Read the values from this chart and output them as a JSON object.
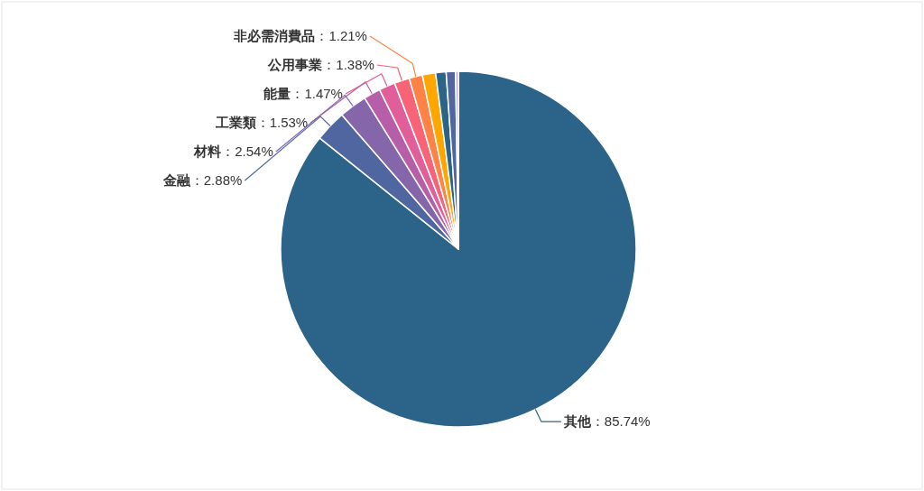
{
  "chart_data": {
    "type": "pie",
    "categories": [
      "其他",
      "金融",
      "材料",
      "工業類",
      "能量",
      "公用事業",
      "非必需消費品",
      null,
      null,
      null,
      null
    ],
    "values": [
      85.74,
      2.88,
      2.54,
      1.53,
      1.47,
      1.38,
      1.21,
      1.2,
      0.95,
      0.85,
      0.25
    ],
    "colors": [
      "#2c6389",
      "#4f66a0",
      "#8566ab",
      "#b65fa8",
      "#e05f9a",
      "#f76477",
      "#ff8346",
      "#ffa600",
      "#2c6389",
      "#4f66a0",
      "#b9a6d8"
    ],
    "value_labels": [
      "：85.74%",
      "：2.88%",
      "：2.54%",
      "：1.53%",
      "：1.47%",
      "：1.38%",
      "：1.21%",
      null,
      null,
      null,
      null
    ]
  }
}
